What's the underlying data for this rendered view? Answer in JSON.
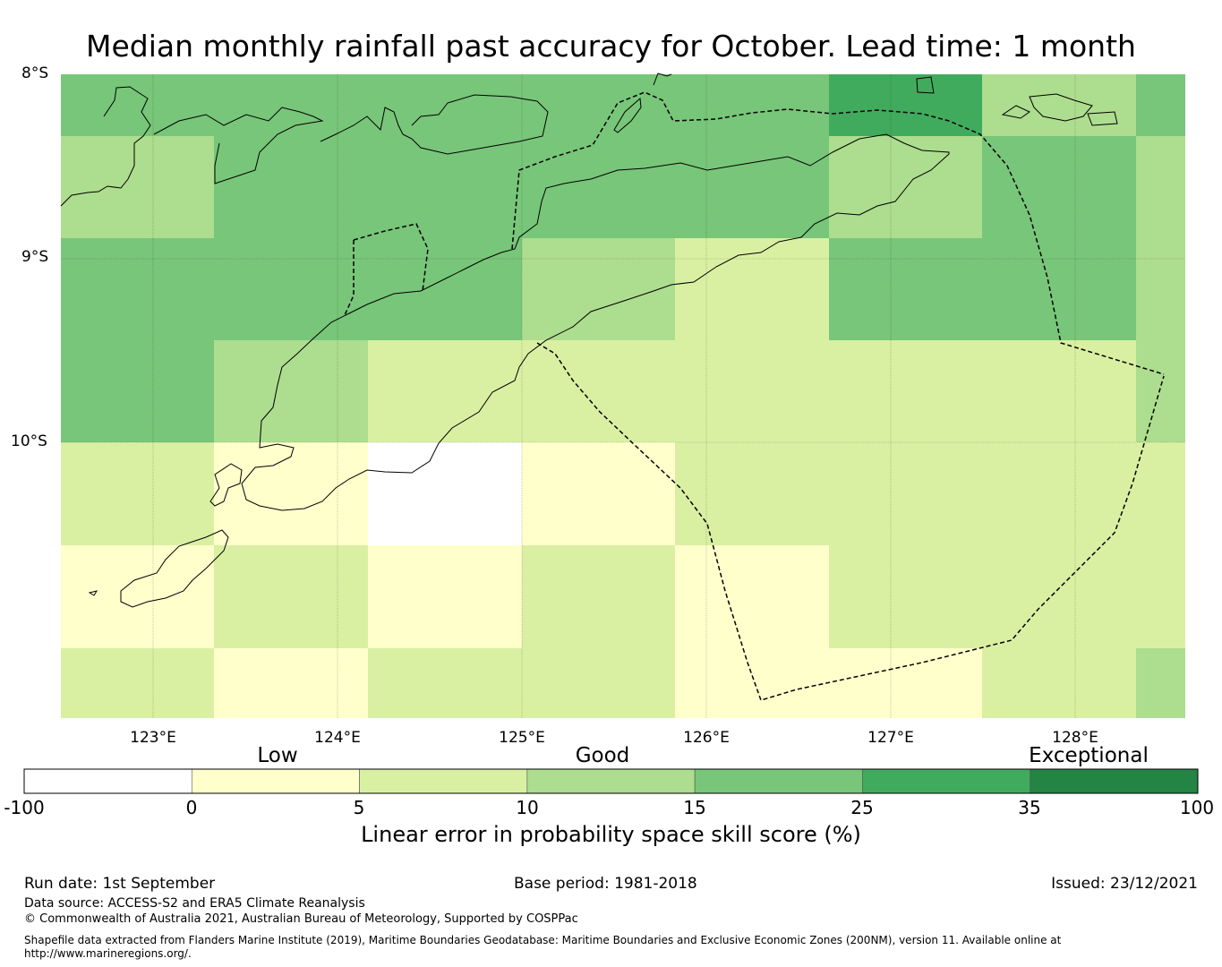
{
  "title": "Median monthly rainfall past accuracy for October. Lead time: 1 month",
  "map": {
    "lat_labels": [
      "8°S",
      "9°S",
      "10°S"
    ],
    "lon_labels": [
      "123°E",
      "124°E",
      "125°E",
      "126°E",
      "127°E",
      "128°E"
    ],
    "lon_range": [
      122.5,
      128.6
    ],
    "lat_range": [
      -11.5,
      -8.0
    ],
    "grid_lines": true,
    "boundary_style": "dashed"
  },
  "skill_grid": {
    "cell_colors": {
      "0": "#ffffff",
      "1": "#ffffcc",
      "2": "#d9f0a3",
      "3": "#addd8e",
      "4": "#78c679",
      "5": "#41ab5d",
      "6": "#238443"
    },
    "rows": [
      [
        4,
        4,
        4,
        4,
        4,
        5,
        3,
        4
      ],
      [
        3,
        4,
        4,
        4,
        4,
        3,
        4,
        3
      ],
      [
        4,
        4,
        4,
        3,
        2,
        4,
        4,
        3
      ],
      [
        4,
        3,
        2,
        2,
        2,
        2,
        2,
        3
      ],
      [
        2,
        1,
        0,
        1,
        2,
        2,
        2,
        2
      ],
      [
        1,
        2,
        1,
        2,
        1,
        2,
        2,
        2
      ],
      [
        2,
        1,
        2,
        2,
        1,
        1,
        2,
        3
      ]
    ]
  },
  "colorbar": {
    "category_labels": [
      "Low",
      "Good",
      "Exceptional"
    ],
    "ticks": [
      "-100",
      "0",
      "5",
      "10",
      "15",
      "25",
      "35",
      "100"
    ],
    "colors": [
      "#ffffff",
      "#ffffcc",
      "#d9f0a3",
      "#addd8e",
      "#78c679",
      "#41ab5d",
      "#238443"
    ],
    "title": "Linear error in probability space skill score (%)"
  },
  "footer": {
    "run_date": "Run date: 1st September",
    "base_period": "Base period: 1981-2018",
    "issued": "Issued: 23/12/2021",
    "data_source": "Data source: ACCESS-S2 and ERA5 Climate Reanalysis",
    "copyright": "© Commonwealth of Australia 2021, Australian Bureau of Meteorology, Supported by COSPPac",
    "shapefile_line1": "Shapefile data extracted from Flanders Marine Institute (2019), Maritime Boundaries Geodatabase: Maritime Boundaries and Exclusive Economic Zones (200NM), version 11. Available online at",
    "shapefile_line2": "http://www.marineregions.org/."
  }
}
